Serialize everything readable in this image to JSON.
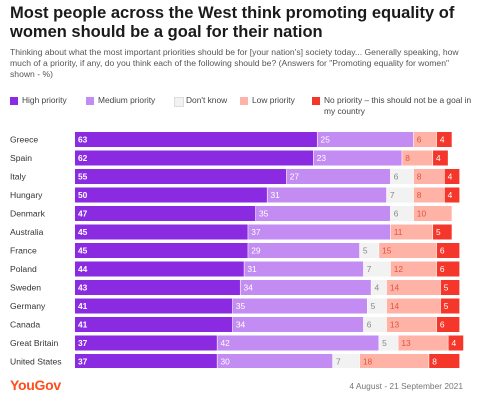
{
  "chart_data": {
    "type": "bar",
    "orientation": "horizontal",
    "stacked": true,
    "title": "Most people across the West think promoting equality of women should be a goal for their nation",
    "subtitle": "Thinking about what the most important priorities should be for [your nation's] society today... Generally speaking, how much of a priority, if any, do you think each of the following should be? (Answers for \"Promoting equality for women\" shown - %)",
    "categories": [
      "Greece",
      "Spain",
      "Italy",
      "Hungary",
      "Denmark",
      "Australia",
      "France",
      "Poland",
      "Sweden",
      "Germany",
      "Canada",
      "Great Britain",
      "United States"
    ],
    "series": [
      {
        "name": "High priority",
        "color": "#8a2be2",
        "values": [
          63,
          62,
          55,
          50,
          47,
          45,
          45,
          44,
          43,
          41,
          41,
          37,
          37
        ]
      },
      {
        "name": "Medium priority",
        "color": "#c28cf2",
        "values": [
          25,
          23,
          27,
          31,
          35,
          37,
          29,
          31,
          34,
          35,
          34,
          42,
          30
        ]
      },
      {
        "name": "Don't know",
        "color": "#f2f2f2",
        "values": [
          null,
          null,
          6,
          7,
          6,
          null,
          5,
          7,
          4,
          5,
          6,
          5,
          7
        ]
      },
      {
        "name": "Low priority",
        "color": "#ffb3a7",
        "values": [
          6,
          8,
          8,
          8,
          10,
          11,
          15,
          12,
          14,
          14,
          13,
          13,
          18
        ]
      },
      {
        "name": "No priority – this should not be a goal in my country",
        "color": "#f5362a",
        "values": [
          4,
          4,
          4,
          4,
          null,
          5,
          6,
          6,
          5,
          5,
          6,
          4,
          8
        ]
      }
    ],
    "segment_colors": {
      "dont_know_text": "#888888",
      "low_text": "#e0533f",
      "high_text": "#ffffff",
      "none_text": "#ffffff"
    },
    "xlim": [
      0,
      100
    ],
    "grid": false,
    "legend_position": "top"
  },
  "footer": {
    "brand": "YouGov",
    "date_range": "4 August - 21 September 2021"
  }
}
